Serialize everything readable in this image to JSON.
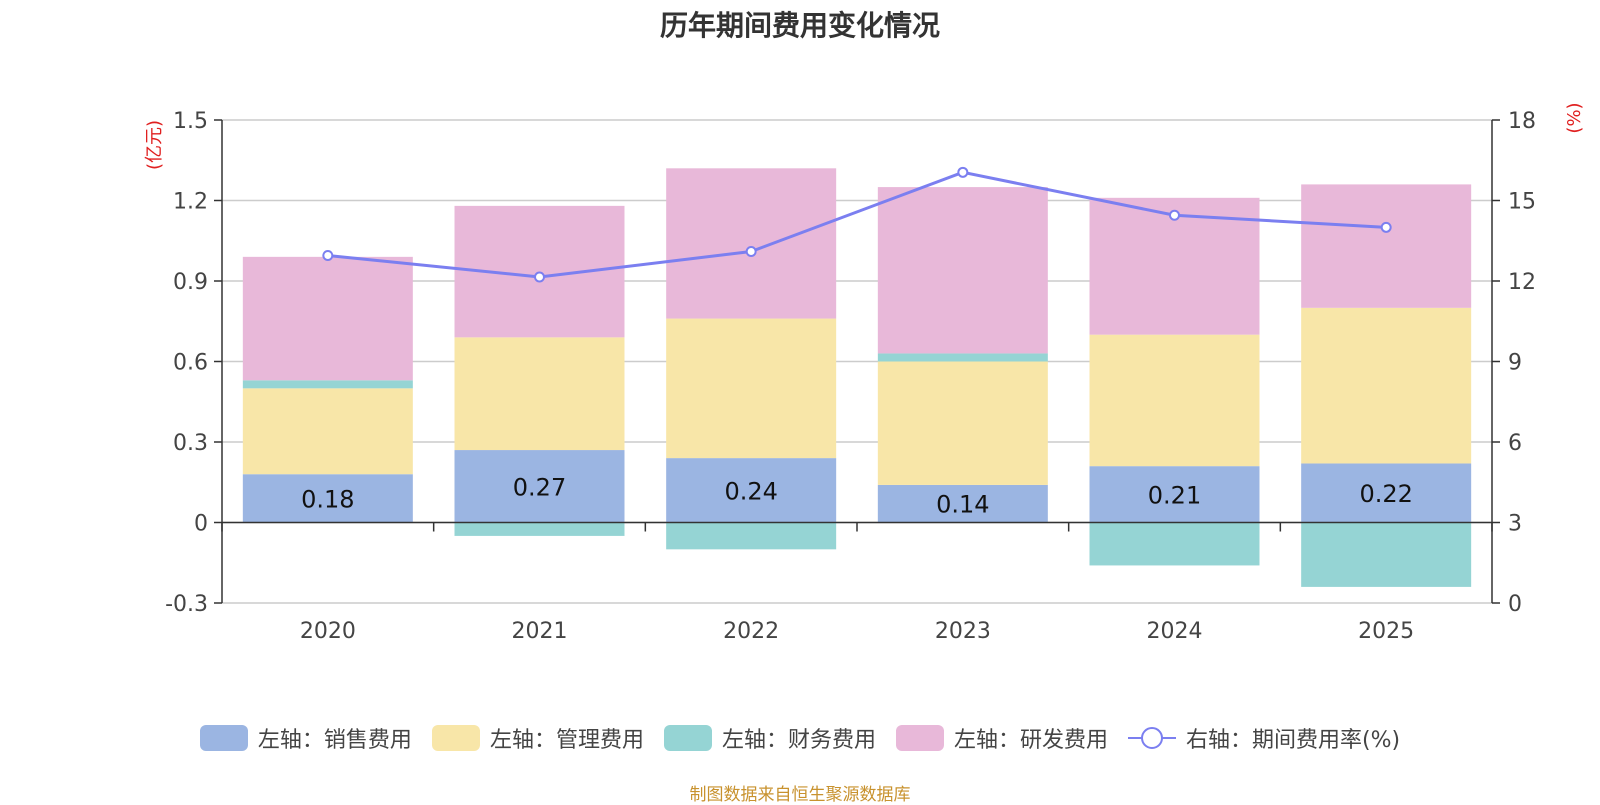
{
  "chart_data": {
    "type": "bar",
    "title": "历年期间费用变化情况",
    "categories": [
      "2020",
      "2021",
      "2022",
      "2023",
      "2024",
      "2025"
    ],
    "left_axis": {
      "label": "(亿元)",
      "ylim": [
        -0.3,
        1.5
      ],
      "ticks": [
        "-0.3",
        "0",
        "0.3",
        "0.6",
        "0.9",
        "1.2",
        "1.5"
      ],
      "tick_values": [
        -0.3,
        0,
        0.3,
        0.6,
        0.9,
        1.2,
        1.5
      ]
    },
    "right_axis": {
      "label": "(%)",
      "ylim": [
        0,
        18
      ],
      "ticks": [
        "0",
        "3",
        "6",
        "9",
        "12",
        "15",
        "18"
      ],
      "tick_values": [
        0,
        3,
        6,
        9,
        12,
        15,
        18
      ]
    },
    "series": [
      {
        "name": "左轴：销售费用",
        "axis": "left",
        "stack": true,
        "color": "#9bb5e2",
        "values": [
          0.18,
          0.27,
          0.24,
          0.14,
          0.21,
          0.22
        ],
        "labels": [
          "0.18",
          "0.27",
          "0.24",
          "0.14",
          "0.21",
          "0.22"
        ]
      },
      {
        "name": "左轴：管理费用",
        "axis": "left",
        "stack": true,
        "color": "#f8e6a8",
        "values": [
          0.32,
          0.42,
          0.52,
          0.46,
          0.49,
          0.58
        ]
      },
      {
        "name": "左轴：财务费用",
        "axis": "left",
        "stack": true,
        "color": "#95d4d4",
        "values": [
          0.03,
          -0.05,
          -0.1,
          0.03,
          -0.16,
          -0.24
        ]
      },
      {
        "name": "左轴：研发费用",
        "axis": "left",
        "stack": true,
        "color": "#e8b8d9",
        "values": [
          0.46,
          0.49,
          0.56,
          0.62,
          0.51,
          0.46
        ]
      },
      {
        "name": "右轴：期间费用率(%)",
        "axis": "right",
        "type": "line",
        "color": "#7b7ff0",
        "values": [
          12.95,
          12.15,
          13.1,
          16.05,
          14.45,
          14.0
        ]
      }
    ]
  },
  "source": "制图数据来自恒生聚源数据库"
}
